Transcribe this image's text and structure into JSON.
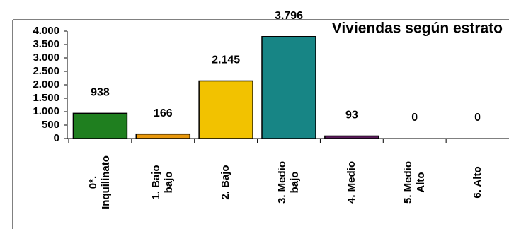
{
  "chart_data": {
    "type": "bar",
    "title": "Viviendas según estrato",
    "categories": [
      "0*. Inquilinato",
      "1. Bajo bajo",
      "2. Bajo",
      "3. Medio bajo",
      "4. Medio",
      "5. Medio Alto",
      "6. Alto"
    ],
    "values": [
      938,
      166,
      2145,
      3796,
      93,
      0,
      0
    ],
    "value_labels": [
      "938",
      "166",
      "2.145",
      "3.796",
      "93",
      "0",
      "0"
    ],
    "colors": [
      "#1f7f1f",
      "#e8980c",
      "#f2c200",
      "#178585",
      "#5a1a5a",
      "#888888",
      "#888888"
    ],
    "ylim": [
      0,
      4000
    ],
    "yticks": [
      0,
      500,
      {
        "value": 1000,
        "label": "1.000"
      },
      {
        "value": 1500,
        "label": "1.500"
      },
      {
        "value": 2000,
        "label": "2.000"
      },
      {
        "value": 2500,
        "label": "2.500"
      },
      {
        "value": 3000,
        "label": "3.000"
      },
      {
        "value": 3500,
        "label": "3.500"
      },
      {
        "value": 4000,
        "label": "4.000"
      }
    ]
  }
}
